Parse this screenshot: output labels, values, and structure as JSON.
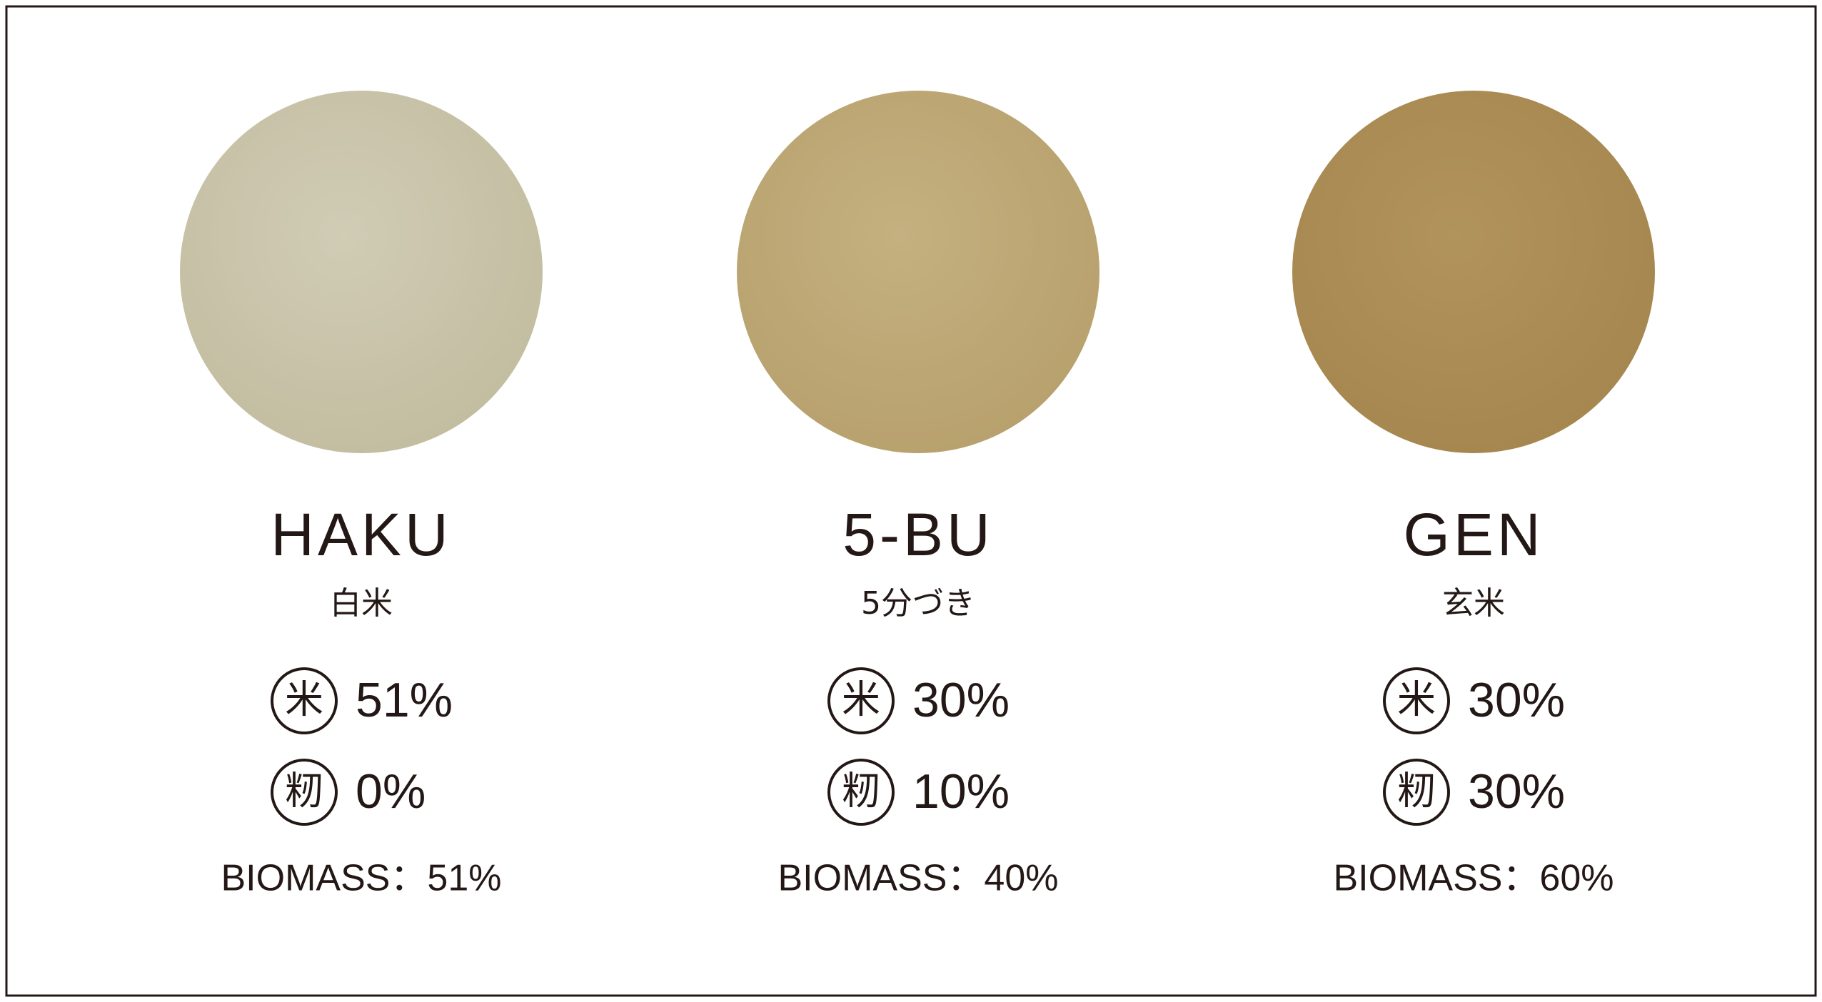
{
  "items": [
    {
      "name": "HAKU",
      "japanese": "白米",
      "rice_icon": "米",
      "rice": "51%",
      "husk_icon": "籾",
      "husk": "0%",
      "biomass": "BIOMASS：51%"
    },
    {
      "name": "5-BU",
      "japanese": "5分づき",
      "rice_icon": "米",
      "rice": "30%",
      "husk_icon": "籾",
      "husk": "10%",
      "biomass": "BIOMASS：40%"
    },
    {
      "name": "GEN",
      "japanese": "玄米",
      "rice_icon": "米",
      "rice": "30%",
      "husk_icon": "籾",
      "husk": "30%",
      "biomass": "BIOMASS：60%"
    }
  ]
}
